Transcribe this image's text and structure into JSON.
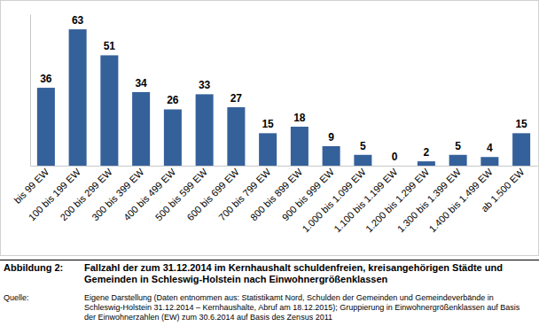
{
  "chart_data": {
    "type": "bar",
    "figure_label": "Abbildung 2:",
    "title": "Fallzahl der zum 31.12.2014 im Kernhaushalt schuldenfreien, kreisangehörigen Städte und Gemeinden in Schleswig-Holstein nach Einwohnergrößenklassen",
    "source_label": "Quelle:",
    "source": "Eigene Darstellung (Daten entnommen aus: Statistikamt Nord, Schulden der Gemeinden und Gemeindeverbände in Schleswig-Holstein 31.12.2014 – Kernhaushalte, Abruf am 18.12.2015); Gruppierung in Einwohnergrößenklassen auf Basis der Einwohnerzahlen (EW) zum 30.6.2014 auf Basis des Zensus 2011",
    "categories": [
      "bis 99 EW",
      "100 bis 199 EW",
      "200 bis 299 EW",
      "300 bis 399 EW",
      "400 bis 499 EW",
      "500 bis 599 EW",
      "600 bis 699 EW",
      "700 bis 799 EW",
      "800 bis 899 EW",
      "900 bis 999 EW",
      "1.000 bis 1.099 EW",
      "1.100 bis 1.199 EW",
      "1.200 bis 1.299 EW",
      "1.300 bis 1.399 EW",
      "1.400 bis 1.499 EW",
      "ab 1.500 EW"
    ],
    "values": [
      36,
      63,
      51,
      34,
      26,
      33,
      27,
      15,
      18,
      9,
      5,
      0,
      2,
      5,
      4,
      15
    ],
    "color": "#35619b",
    "ylim": [
      0,
      70
    ],
    "data_labels": true,
    "tick_labels": "x",
    "grid": false
  }
}
